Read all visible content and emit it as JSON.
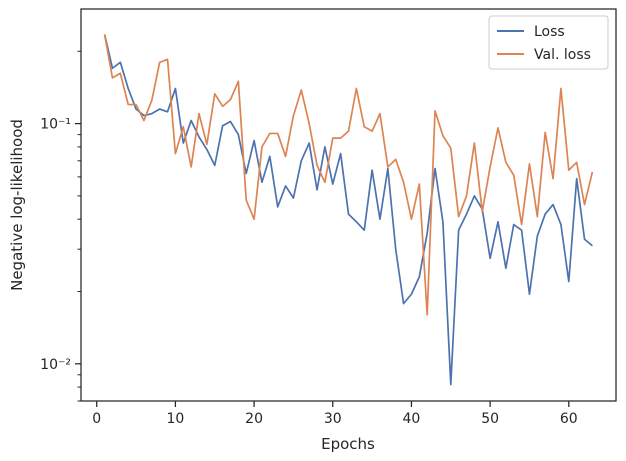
{
  "chart_data": {
    "type": "line",
    "xlabel": "Epochs",
    "ylabel": "Negative log-likelihood",
    "yscale": "log",
    "xlim": [
      -2,
      66
    ],
    "ylim": [
      0.007,
      0.3
    ],
    "x_ticks": [
      0,
      10,
      20,
      30,
      40,
      50,
      60
    ],
    "y_major_ticks": [
      0.01,
      0.1
    ],
    "y_major_tick_labels": [
      "10⁻²",
      "10⁻¹"
    ],
    "grid": false,
    "legend_position": "top-right",
    "x": [
      1,
      2,
      3,
      4,
      5,
      6,
      7,
      8,
      9,
      10,
      11,
      12,
      13,
      14,
      15,
      16,
      17,
      18,
      19,
      20,
      21,
      22,
      23,
      24,
      25,
      26,
      27,
      28,
      29,
      30,
      31,
      32,
      33,
      34,
      35,
      36,
      37,
      38,
      39,
      40,
      41,
      42,
      43,
      44,
      45,
      46,
      47,
      48,
      49,
      50,
      51,
      52,
      53,
      54,
      55,
      56,
      57,
      58,
      59,
      60,
      61,
      62,
      63
    ],
    "series": [
      {
        "name": "Loss",
        "color": "#4c72b0",
        "values": [
          0.235,
          0.17,
          0.18,
          0.14,
          0.115,
          0.108,
          0.11,
          0.115,
          0.112,
          0.14,
          0.083,
          0.103,
          0.088,
          0.078,
          0.067,
          0.098,
          0.102,
          0.09,
          0.062,
          0.085,
          0.057,
          0.073,
          0.045,
          0.055,
          0.049,
          0.07,
          0.083,
          0.053,
          0.08,
          0.056,
          0.075,
          0.042,
          0.039,
          0.036,
          0.064,
          0.04,
          0.065,
          0.03,
          0.0178,
          0.0195,
          0.023,
          0.035,
          0.065,
          0.039,
          0.0082,
          0.036,
          0.042,
          0.05,
          0.044,
          0.0275,
          0.039,
          0.025,
          0.038,
          0.036,
          0.0195,
          0.034,
          0.042,
          0.046,
          0.038,
          0.022,
          0.059,
          0.033,
          0.031
        ]
      },
      {
        "name": "Val. loss",
        "color": "#dd8452",
        "values": [
          0.235,
          0.155,
          0.162,
          0.12,
          0.12,
          0.103,
          0.125,
          0.18,
          0.185,
          0.075,
          0.097,
          0.066,
          0.11,
          0.082,
          0.133,
          0.118,
          0.126,
          0.15,
          0.048,
          0.04,
          0.08,
          0.091,
          0.091,
          0.073,
          0.108,
          0.138,
          0.1,
          0.067,
          0.057,
          0.087,
          0.087,
          0.093,
          0.14,
          0.097,
          0.093,
          0.11,
          0.066,
          0.071,
          0.057,
          0.04,
          0.056,
          0.016,
          0.113,
          0.089,
          0.079,
          0.041,
          0.05,
          0.083,
          0.043,
          0.066,
          0.096,
          0.069,
          0.061,
          0.038,
          0.068,
          0.041,
          0.092,
          0.059,
          0.14,
          0.064,
          0.069,
          0.046,
          0.063
        ]
      }
    ]
  }
}
